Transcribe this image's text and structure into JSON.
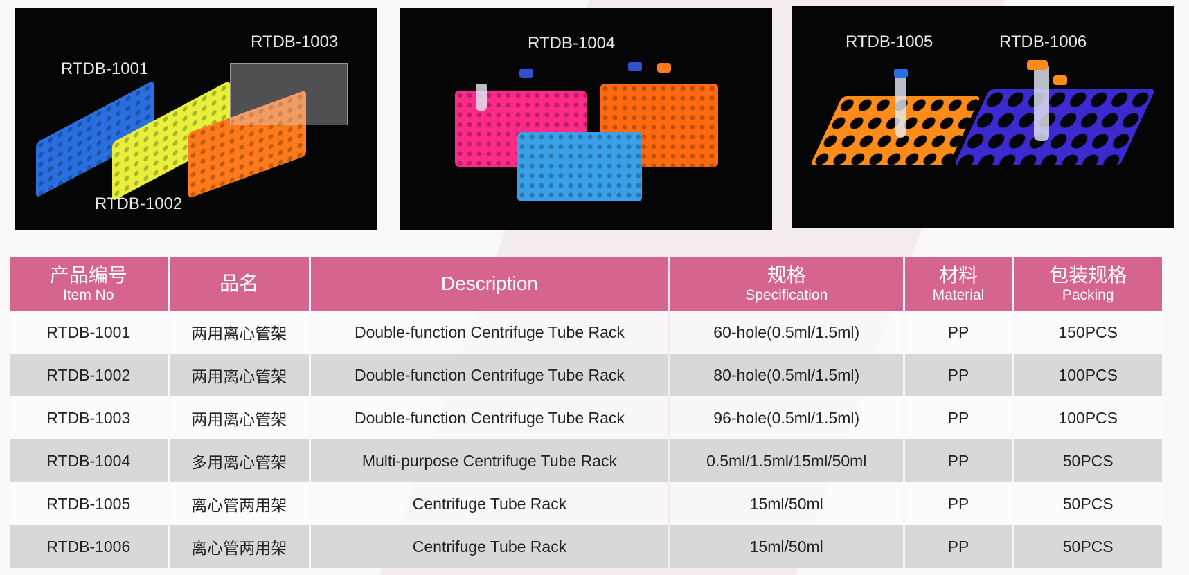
{
  "panels": [
    {
      "labels": [
        "RTDB-1001",
        "RTDB-1003",
        "RTDB-1002"
      ]
    },
    {
      "labels": [
        "RTDB-1004"
      ]
    },
    {
      "labels": [
        "RTDB-1005",
        "RTDB-1006"
      ]
    }
  ],
  "table": {
    "headers": [
      {
        "cn": "产品编号",
        "en": "Item No"
      },
      {
        "cn": "品名",
        "en": ""
      },
      {
        "cn": "",
        "en": "Description"
      },
      {
        "cn": "规格",
        "en": "Specification"
      },
      {
        "cn": "材料",
        "en": "Material"
      },
      {
        "cn": "包装规格",
        "en": "Packing"
      }
    ],
    "rows": [
      [
        "RTDB-1001",
        "两用离心管架",
        "Double-function Centrifuge Tube Rack",
        "60-hole(0.5ml/1.5ml)",
        "PP",
        "150PCS"
      ],
      [
        "RTDB-1002",
        "两用离心管架",
        "Double-function Centrifuge Tube Rack",
        "80-hole(0.5ml/1.5ml)",
        "PP",
        "100PCS"
      ],
      [
        "RTDB-1003",
        "两用离心管架",
        "Double-function Centrifuge Tube Rack",
        "96-hole(0.5ml/1.5ml)",
        "PP",
        "100PCS"
      ],
      [
        "RTDB-1004",
        "多用离心管架",
        "Multi-purpose Centrifuge Tube Rack",
        "0.5ml/1.5ml/15ml/50ml",
        "PP",
        "50PCS"
      ],
      [
        "RTDB-1005",
        "离心管两用架",
        "Centrifuge Tube Rack",
        "15ml/50ml",
        "PP",
        "50PCS"
      ],
      [
        "RTDB-1006",
        "离心管两用架",
        "Centrifuge Tube Rack",
        "15ml/50ml",
        "PP",
        "50PCS"
      ]
    ]
  },
  "colors": {
    "header": "#d5648f",
    "alt_row": "#d8d8d8",
    "panel_bg": "#050505"
  }
}
